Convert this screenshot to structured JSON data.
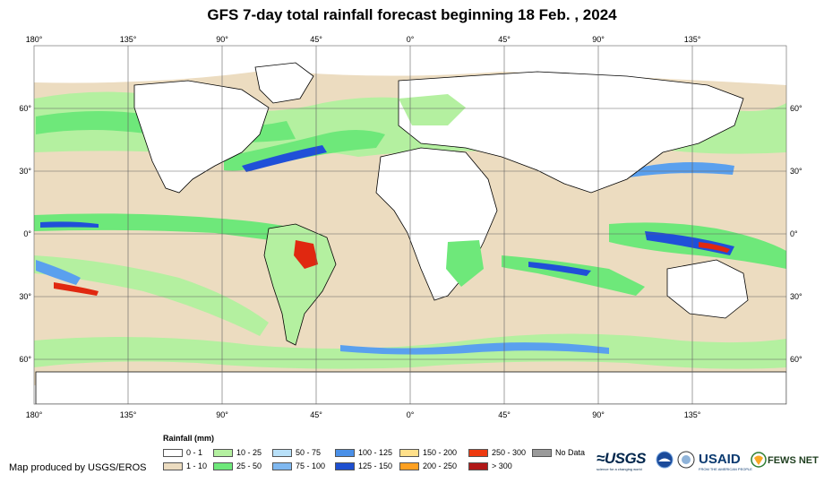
{
  "title": "GFS 7-day total rainfall forecast beginning 18 Feb. , 2024",
  "map": {
    "lon_labels": [
      "180°",
      "135°",
      "90°",
      "45°",
      "0°",
      "45°",
      "90°",
      "135°"
    ],
    "lat_labels": [
      "60°",
      "30°",
      "0°",
      "30°",
      "60°"
    ],
    "colors": {
      "ocean_land_dry": "#ffffff",
      "dry_tan": "#ecdcc0",
      "light_green": "#b4f0a0",
      "green": "#6ee87a",
      "light_blue": "#b8e0f8",
      "mid_blue": "#5aa0ee",
      "dark_blue": "#2050d8",
      "orange": "#f08a20",
      "red": "#e02810",
      "grid": "#606060"
    }
  },
  "legend": {
    "title": "Rainfall (mm)",
    "items": [
      {
        "label": "0 - 1",
        "color": "#ffffff"
      },
      {
        "label": "1 - 10",
        "color": "#ecdcc0"
      },
      {
        "label": "10 - 25",
        "color": "#b4f0a0"
      },
      {
        "label": "25 - 50",
        "color": "#6ee87a"
      },
      {
        "label": "50 - 75",
        "color": "#b8e0f8"
      },
      {
        "label": "75 - 100",
        "color": "#7fb8f0"
      },
      {
        "label": "100 - 125",
        "color": "#4a90e8"
      },
      {
        "label": "125 - 150",
        "color": "#1e4fd0"
      },
      {
        "label": "150 - 200",
        "color": "#ffe08a"
      },
      {
        "label": "200 - 250",
        "color": "#ffa020"
      },
      {
        "label": "250 - 300",
        "color": "#ee3a10"
      },
      {
        "label": "> 300",
        "color": "#b01818"
      },
      {
        "label": "No Data",
        "color": "#9a9a9a"
      }
    ]
  },
  "credit": "Map produced by USGS/EROS",
  "logos": {
    "usgs": "≈USGS",
    "usgs_tagline": "science for a changing world",
    "usaid": "USAID",
    "usaid_tagline": "FROM THE AMERICAN PEOPLE",
    "fews": "FEWS NET"
  }
}
